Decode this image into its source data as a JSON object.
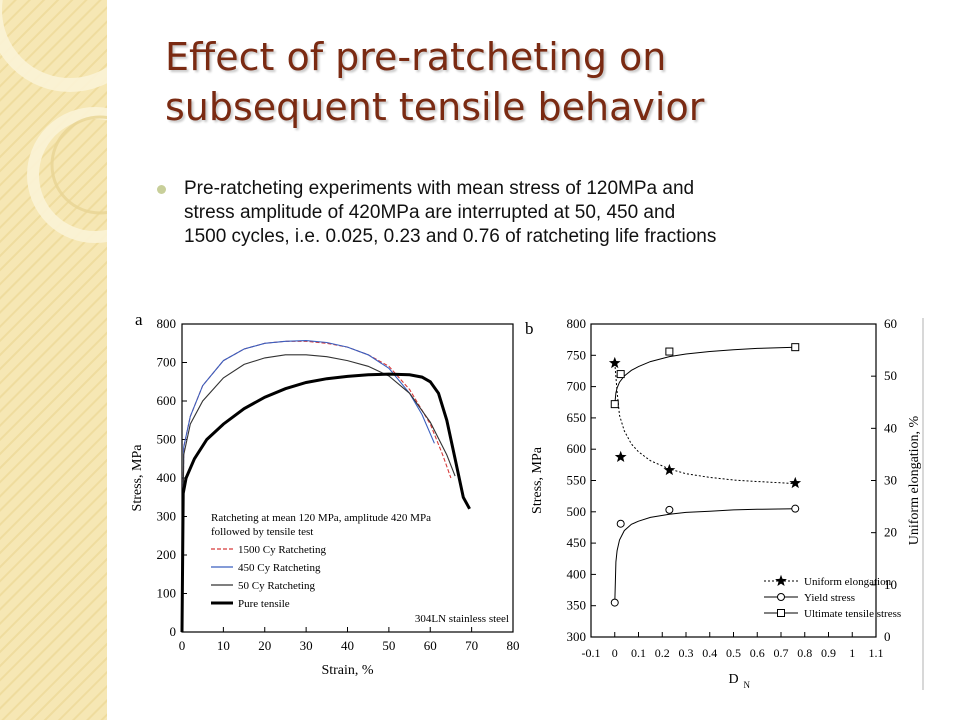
{
  "slide": {
    "title_line1": "Effect of pre-ratcheting on",
    "title_line2": "subsequent tensile behavior",
    "bullet_line1": "Pre-ratcheting experiments with mean stress of 120MPa and",
    "bullet_line2": "stress amplitude of 420MPa are interrupted at 50, 450 and",
    "bullet_line3": "1500 cycles, i.e. 0.025, 0.23 and 0.76 of ratcheting life fractions",
    "accent_color": "#7a2a12",
    "band_color": "#f6e7b4"
  },
  "chart_data": [
    {
      "panel_label": "a",
      "type": "line",
      "xlabel": "Strain, %",
      "ylabel": "Stress, MPa",
      "xlim": [
        0,
        80
      ],
      "ylim": [
        0,
        800
      ],
      "xticks": [
        0,
        10,
        20,
        30,
        40,
        50,
        60,
        70,
        80
      ],
      "yticks": [
        0,
        100,
        200,
        300,
        400,
        500,
        600,
        700,
        800
      ],
      "legend_title_line1": "Ratcheting at mean 120 MPa, amplitude 420 MPa",
      "legend_title_line2": "followed by tensile test",
      "legend_position": "bottom-left",
      "annotation": "304LN stainless steel",
      "series": [
        {
          "name": "1500 Cy Ratcheting",
          "color": "#d63a3a",
          "dash": true,
          "x": [
            0,
            0.4,
            2,
            5,
            10,
            15,
            20,
            25,
            30,
            35,
            40,
            45,
            50,
            55,
            60,
            63,
            65
          ],
          "y": [
            0,
            480,
            560,
            640,
            705,
            735,
            750,
            755,
            755,
            750,
            740,
            720,
            690,
            630,
            540,
            460,
            400
          ]
        },
        {
          "name": "450 Cy Ratcheting",
          "color": "#3a5fbf",
          "dash": false,
          "x": [
            0,
            0.4,
            2,
            5,
            10,
            15,
            20,
            25,
            30,
            35,
            40,
            45,
            50,
            55,
            58,
            61
          ],
          "y": [
            0,
            480,
            560,
            640,
            705,
            735,
            750,
            755,
            757,
            752,
            740,
            720,
            685,
            620,
            565,
            490
          ]
        },
        {
          "name": "50 Cy Ratcheting",
          "color": "#333333",
          "dash": false,
          "x": [
            0,
            0.4,
            2,
            5,
            10,
            15,
            20,
            25,
            30,
            35,
            40,
            45,
            50,
            55,
            60,
            64,
            66
          ],
          "y": [
            0,
            460,
            540,
            600,
            660,
            695,
            712,
            720,
            720,
            715,
            705,
            690,
            665,
            620,
            545,
            460,
            405
          ]
        },
        {
          "name": "Pure tensile",
          "color": "#000000",
          "dash": false,
          "bold": true,
          "x": [
            0,
            0.3,
            1,
            3,
            6,
            10,
            15,
            20,
            25,
            30,
            35,
            40,
            45,
            50,
            55,
            58,
            60,
            62,
            64,
            66,
            68,
            69.5
          ],
          "y": [
            0,
            360,
            400,
            450,
            500,
            540,
            580,
            610,
            632,
            648,
            658,
            664,
            668,
            670,
            668,
            662,
            650,
            620,
            550,
            450,
            350,
            320
          ]
        }
      ]
    },
    {
      "panel_label": "b",
      "type": "line",
      "xlabel": "D",
      "xlabel_sub": "N",
      "ylabel": "Stress, MPa",
      "y2label": "Uniform elongation, %",
      "xlim": [
        -0.1,
        1.1
      ],
      "ylim": [
        300,
        800
      ],
      "y2lim": [
        0,
        60
      ],
      "xticks": [
        -0.1,
        0.0,
        0.1,
        0.2,
        0.3,
        0.4,
        0.5,
        0.6,
        0.7,
        0.8,
        0.9,
        1.0,
        1.1
      ],
      "yticks": [
        300,
        350,
        400,
        450,
        500,
        550,
        600,
        650,
        700,
        750,
        800
      ],
      "y2ticks": [
        0,
        10,
        20,
        30,
        40,
        50,
        60
      ],
      "legend_position": "bottom-right",
      "series": [
        {
          "name": "Uniform elongation",
          "marker": "star",
          "axis": "right",
          "dash": true,
          "x": [
            0.0,
            0.025,
            0.23,
            0.76
          ],
          "y": [
            52.5,
            34.5,
            32,
            29.5
          ],
          "fit_x": [
            0.0,
            0.01,
            0.02,
            0.04,
            0.07,
            0.1,
            0.15,
            0.23,
            0.3,
            0.4,
            0.5,
            0.6,
            0.76
          ],
          "fit_y": [
            52.5,
            47,
            42.5,
            39.5,
            37,
            35.5,
            33.8,
            32.2,
            31.3,
            30.6,
            30.1,
            29.8,
            29.4
          ]
        },
        {
          "name": "Yield stress",
          "marker": "circle",
          "axis": "left",
          "dash": false,
          "x": [
            0.0,
            0.025,
            0.23,
            0.76
          ],
          "y": [
            355,
            481,
            503,
            505
          ],
          "fit_x": [
            0.0,
            0.005,
            0.01,
            0.02,
            0.04,
            0.07,
            0.1,
            0.15,
            0.23,
            0.3,
            0.4,
            0.5,
            0.6,
            0.76
          ],
          "fit_y": [
            355,
            420,
            438,
            455,
            470,
            480,
            485,
            491,
            496,
            499,
            501,
            503,
            504,
            505
          ]
        },
        {
          "name": "Ultimate tensile stress",
          "marker": "square",
          "axis": "left",
          "dash": false,
          "x": [
            0.0,
            0.025,
            0.23,
            0.76
          ],
          "y": [
            672,
            720,
            756,
            763
          ],
          "fit_x": [
            0.0,
            0.005,
            0.01,
            0.02,
            0.04,
            0.07,
            0.1,
            0.15,
            0.23,
            0.3,
            0.4,
            0.5,
            0.6,
            0.76
          ],
          "fit_y": [
            672,
            690,
            698,
            707,
            717,
            726,
            732,
            740,
            748,
            752,
            756,
            759,
            761,
            763
          ]
        }
      ]
    }
  ]
}
